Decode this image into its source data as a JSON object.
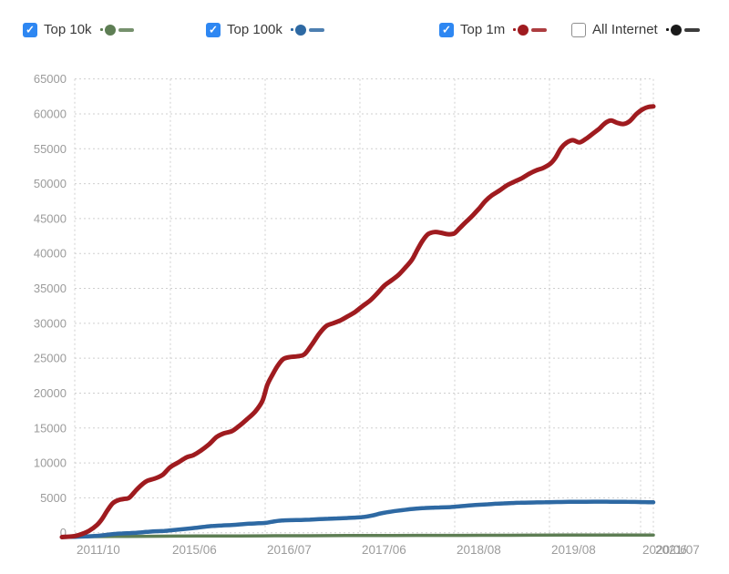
{
  "legend": {
    "checkbox_checked_color": "#2e87f2",
    "checkmark": "✓",
    "items": [
      {
        "id": "top-10k",
        "label": "Top 10k",
        "checked": true,
        "color": "#5e7e54"
      },
      {
        "id": "top-100k",
        "label": "Top 100k",
        "checked": true,
        "color": "#2e69a3"
      },
      {
        "id": "top-1m",
        "label": "Top 1m",
        "checked": true,
        "color": "#9f1b1f"
      },
      {
        "id": "all-internet",
        "label": "All Internet",
        "checked": false,
        "color": "#1a1a1a"
      }
    ]
  },
  "chart_data": {
    "type": "line",
    "title": "",
    "xlabel": "",
    "ylabel": "",
    "grid": true,
    "grid_color": "#cfcfcf",
    "axis_label_color": "#9b9b9b",
    "legend_position": "top",
    "ylim": [
      0,
      65000
    ],
    "y_ticks": [
      0,
      5000,
      10000,
      15000,
      20000,
      25000,
      30000,
      35000,
      40000,
      45000,
      50000,
      55000,
      60000,
      65000
    ],
    "x_ticks": [
      {
        "label": "2011/10",
        "pos": 0.0216
      },
      {
        "label": "2015/06",
        "pos": 0.1833
      },
      {
        "label": "2016/07",
        "pos": 0.3436
      },
      {
        "label": "2017/06",
        "pos": 0.5038
      },
      {
        "label": "2018/08",
        "pos": 0.6641
      },
      {
        "label": "2019/08",
        "pos": 0.8243
      },
      {
        "label": "2020/06",
        "pos": 0.9784
      },
      {
        "label": "2021/07",
        "pos": 1.0
      }
    ],
    "series": [
      {
        "name": "Top 10k",
        "color": "#5e7e54",
        "width": 3.5,
        "points": [
          [
            0,
            0
          ],
          [
            0.05,
            60
          ],
          [
            0.11,
            100
          ],
          [
            0.17,
            130
          ],
          [
            0.23,
            150
          ],
          [
            0.3,
            170
          ],
          [
            0.36,
            190
          ],
          [
            0.42,
            200
          ],
          [
            0.48,
            215
          ],
          [
            0.54,
            230
          ],
          [
            0.6,
            240
          ],
          [
            0.67,
            250
          ],
          [
            0.73,
            260
          ],
          [
            0.79,
            270
          ],
          [
            0.85,
            280
          ],
          [
            0.91,
            290
          ],
          [
            0.97,
            295
          ],
          [
            1,
            300
          ]
        ]
      },
      {
        "name": "Top 100k",
        "color": "#2e69a3",
        "width": 4.5,
        "points": [
          [
            0,
            0
          ],
          [
            0.022,
            40
          ],
          [
            0.042,
            100
          ],
          [
            0.062,
            200
          ],
          [
            0.077,
            330
          ],
          [
            0.089,
            450
          ],
          [
            0.102,
            520
          ],
          [
            0.114,
            560
          ],
          [
            0.126,
            620
          ],
          [
            0.142,
            730
          ],
          [
            0.157,
            820
          ],
          [
            0.173,
            880
          ],
          [
            0.183,
            950
          ],
          [
            0.197,
            1060
          ],
          [
            0.211,
            1170
          ],
          [
            0.225,
            1300
          ],
          [
            0.24,
            1450
          ],
          [
            0.256,
            1580
          ],
          [
            0.271,
            1650
          ],
          [
            0.287,
            1700
          ],
          [
            0.302,
            1800
          ],
          [
            0.317,
            1900
          ],
          [
            0.333,
            1960
          ],
          [
            0.344,
            2010
          ],
          [
            0.354,
            2150
          ],
          [
            0.365,
            2300
          ],
          [
            0.376,
            2370
          ],
          [
            0.388,
            2400
          ],
          [
            0.404,
            2430
          ],
          [
            0.419,
            2470
          ],
          [
            0.435,
            2540
          ],
          [
            0.45,
            2600
          ],
          [
            0.465,
            2650
          ],
          [
            0.481,
            2700
          ],
          [
            0.496,
            2760
          ],
          [
            0.504,
            2800
          ],
          [
            0.515,
            2900
          ],
          [
            0.527,
            3100
          ],
          [
            0.539,
            3350
          ],
          [
            0.552,
            3550
          ],
          [
            0.564,
            3700
          ],
          [
            0.576,
            3820
          ],
          [
            0.588,
            3950
          ],
          [
            0.601,
            4050
          ],
          [
            0.613,
            4120
          ],
          [
            0.626,
            4160
          ],
          [
            0.638,
            4200
          ],
          [
            0.65,
            4230
          ],
          [
            0.664,
            4300
          ],
          [
            0.678,
            4400
          ],
          [
            0.692,
            4500
          ],
          [
            0.706,
            4580
          ],
          [
            0.72,
            4650
          ],
          [
            0.733,
            4720
          ],
          [
            0.747,
            4780
          ],
          [
            0.761,
            4830
          ],
          [
            0.775,
            4870
          ],
          [
            0.789,
            4890
          ],
          [
            0.803,
            4910
          ],
          [
            0.817,
            4930
          ],
          [
            0.83,
            4950
          ],
          [
            0.844,
            4970
          ],
          [
            0.858,
            4990
          ],
          [
            0.872,
            5000
          ],
          [
            0.886,
            5010
          ],
          [
            0.9,
            5020
          ],
          [
            0.914,
            5020
          ],
          [
            0.928,
            5010
          ],
          [
            0.941,
            5010
          ],
          [
            0.955,
            5000
          ],
          [
            0.969,
            4980
          ],
          [
            0.981,
            4960
          ],
          [
            0.991,
            4940
          ],
          [
            1,
            4930
          ]
        ]
      },
      {
        "name": "Top 1m",
        "color": "#9f1b1f",
        "width": 5,
        "points": [
          [
            0,
            0
          ],
          [
            0.022,
            150
          ],
          [
            0.034,
            450
          ],
          [
            0.046,
            900
          ],
          [
            0.059,
            1700
          ],
          [
            0.068,
            2600
          ],
          [
            0.077,
            3800
          ],
          [
            0.086,
            4800
          ],
          [
            0.096,
            5250
          ],
          [
            0.105,
            5400
          ],
          [
            0.114,
            5600
          ],
          [
            0.126,
            6700
          ],
          [
            0.136,
            7500
          ],
          [
            0.145,
            8000
          ],
          [
            0.157,
            8300
          ],
          [
            0.17,
            8800
          ],
          [
            0.183,
            9900
          ],
          [
            0.197,
            10600
          ],
          [
            0.211,
            11300
          ],
          [
            0.222,
            11600
          ],
          [
            0.234,
            12200
          ],
          [
            0.248,
            13100
          ],
          [
            0.262,
            14200
          ],
          [
            0.274,
            14700
          ],
          [
            0.287,
            15000
          ],
          [
            0.299,
            15700
          ],
          [
            0.313,
            16700
          ],
          [
            0.327,
            17800
          ],
          [
            0.339,
            19300
          ],
          [
            0.347,
            21500
          ],
          [
            0.356,
            23000
          ],
          [
            0.365,
            24300
          ],
          [
            0.374,
            25200
          ],
          [
            0.385,
            25500
          ],
          [
            0.398,
            25600
          ],
          [
            0.41,
            25900
          ],
          [
            0.422,
            27200
          ],
          [
            0.435,
            28800
          ],
          [
            0.447,
            29900
          ],
          [
            0.459,
            30300
          ],
          [
            0.471,
            30700
          ],
          [
            0.484,
            31300
          ],
          [
            0.496,
            31900
          ],
          [
            0.508,
            32700
          ],
          [
            0.521,
            33500
          ],
          [
            0.533,
            34500
          ],
          [
            0.545,
            35600
          ],
          [
            0.558,
            36400
          ],
          [
            0.57,
            37200
          ],
          [
            0.582,
            38300
          ],
          [
            0.592,
            39300
          ],
          [
            0.601,
            40700
          ],
          [
            0.61,
            42000
          ],
          [
            0.619,
            42900
          ],
          [
            0.63,
            43200
          ],
          [
            0.641,
            43100
          ],
          [
            0.652,
            42900
          ],
          [
            0.663,
            43000
          ],
          [
            0.673,
            43800
          ],
          [
            0.684,
            44700
          ],
          [
            0.695,
            45600
          ],
          [
            0.706,
            46600
          ],
          [
            0.716,
            47600
          ],
          [
            0.727,
            48400
          ],
          [
            0.74,
            49100
          ],
          [
            0.752,
            49800
          ],
          [
            0.764,
            50300
          ],
          [
            0.777,
            50800
          ],
          [
            0.789,
            51400
          ],
          [
            0.801,
            51900
          ],
          [
            0.814,
            52300
          ],
          [
            0.826,
            52900
          ],
          [
            0.835,
            53800
          ],
          [
            0.844,
            55100
          ],
          [
            0.854,
            55900
          ],
          [
            0.864,
            56200
          ],
          [
            0.875,
            55900
          ],
          [
            0.886,
            56400
          ],
          [
            0.897,
            57100
          ],
          [
            0.908,
            57800
          ],
          [
            0.918,
            58600
          ],
          [
            0.928,
            59000
          ],
          [
            0.938,
            58700
          ],
          [
            0.949,
            58500
          ],
          [
            0.96,
            58900
          ],
          [
            0.971,
            59900
          ],
          [
            0.982,
            60600
          ],
          [
            0.991,
            60900
          ],
          [
            1,
            61000
          ]
        ]
      }
    ]
  }
}
